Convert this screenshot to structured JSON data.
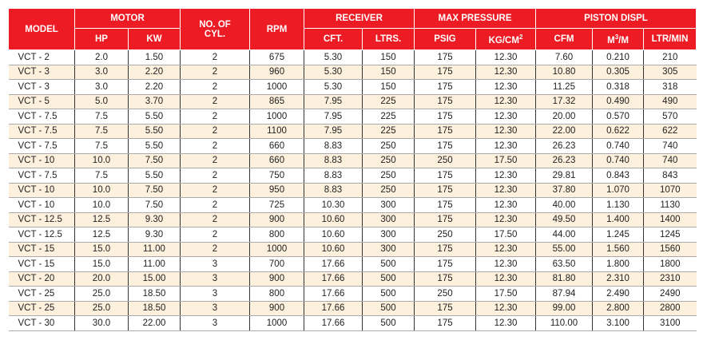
{
  "header": {
    "model": "MODEL",
    "motor": "MOTOR",
    "hp": "HP",
    "kw": "KW",
    "cyl": "NO. OF CYL.",
    "rpm": "RPM",
    "receiver": "RECEIVER",
    "cft": "CFT.",
    "ltrs": "LTRS.",
    "max_pressure": "MAX PRESSURE",
    "psig": "PSIG",
    "kgcm": "KG/CM",
    "kgcm_sup": "2",
    "piston_displ": "PISTON DISPL",
    "cfm": "CFM",
    "m3m_pre": "M",
    "m3m_sup": "3",
    "m3m_post": "/M",
    "ltrmin": "LTR/MIN"
  },
  "colors": {
    "header_bg": "#ed1c24",
    "alt_row_bg": "#fdf0dc"
  },
  "rows": [
    [
      "VCT - 2",
      "2.0",
      "1.50",
      "2",
      "675",
      "5.30",
      "150",
      "175",
      "12.30",
      "7.60",
      "0.210",
      "210"
    ],
    [
      "VCT - 3",
      "3.0",
      "2.20",
      "2",
      "960",
      "5.30",
      "150",
      "175",
      "12.30",
      "10.80",
      "0.305",
      "305"
    ],
    [
      "VCT - 3",
      "3.0",
      "2.20",
      "2",
      "1000",
      "5.30",
      "150",
      "175",
      "12.30",
      "11.25",
      "0.318",
      "318"
    ],
    [
      "VCT - 5",
      "5.0",
      "3.70",
      "2",
      "865",
      "7.95",
      "225",
      "175",
      "12.30",
      "17.32",
      "0.490",
      "490"
    ],
    [
      "VCT - 7.5",
      "7.5",
      "5.50",
      "2",
      "1000",
      "7.95",
      "225",
      "175",
      "12.30",
      "20.00",
      "0.570",
      "570"
    ],
    [
      "VCT - 7.5",
      "7.5",
      "5.50",
      "2",
      "1100",
      "7.95",
      "225",
      "175",
      "12.30",
      "22.00",
      "0.622",
      "622"
    ],
    [
      "VCT - 7.5",
      "7.5",
      "5.50",
      "2",
      "660",
      "8.83",
      "250",
      "175",
      "12.30",
      "26.23",
      "0.740",
      "740"
    ],
    [
      "VCT - 10",
      "10.0",
      "7.50",
      "2",
      "660",
      "8.83",
      "250",
      "250",
      "17.50",
      "26.23",
      "0.740",
      "740"
    ],
    [
      "VCT - 7.5",
      "7.5",
      "5.50",
      "2",
      "750",
      "8.83",
      "250",
      "175",
      "12.30",
      "29.81",
      "0.843",
      "843"
    ],
    [
      "VCT - 10",
      "10.0",
      "7.50",
      "2",
      "950",
      "8.83",
      "250",
      "175",
      "12.30",
      "37.80",
      "1.070",
      "1070"
    ],
    [
      "VCT - 10",
      "10.0",
      "7.50",
      "2",
      "725",
      "10.30",
      "300",
      "175",
      "12.30",
      "40.00",
      "1.130",
      "1130"
    ],
    [
      "VCT - 12.5",
      "12.5",
      "9.30",
      "2",
      "900",
      "10.60",
      "300",
      "175",
      "12.30",
      "49.50",
      "1.400",
      "1400"
    ],
    [
      "VCT - 12.5",
      "12.5",
      "9.30",
      "2",
      "800",
      "10.60",
      "300",
      "250",
      "17.50",
      "44.00",
      "1.245",
      "1245"
    ],
    [
      "VCT - 15",
      "15.0",
      "11.00",
      "2",
      "1000",
      "10.60",
      "300",
      "175",
      "12.30",
      "55.00",
      "1.560",
      "1560"
    ],
    [
      "VCT - 15",
      "15.0",
      "11.00",
      "3",
      "700",
      "17.66",
      "500",
      "175",
      "12.30",
      "63.50",
      "1.800",
      "1800"
    ],
    [
      "VCT - 20",
      "20.0",
      "15.00",
      "3",
      "900",
      "17.66",
      "500",
      "175",
      "12.30",
      "81.80",
      "2.310",
      "2310"
    ],
    [
      "VCT - 25",
      "25.0",
      "18.50",
      "3",
      "800",
      "17.66",
      "500",
      "250",
      "17.50",
      "87.94",
      "2.490",
      "2490"
    ],
    [
      "VCT - 25",
      "25.0",
      "18.50",
      "3",
      "900",
      "17.66",
      "500",
      "175",
      "12.30",
      "99.00",
      "2.800",
      "2800"
    ],
    [
      "VCT - 30",
      "30.0",
      "22.00",
      "3",
      "1000",
      "17.66",
      "500",
      "175",
      "12.30",
      "110.00",
      "3.100",
      "3100"
    ]
  ]
}
